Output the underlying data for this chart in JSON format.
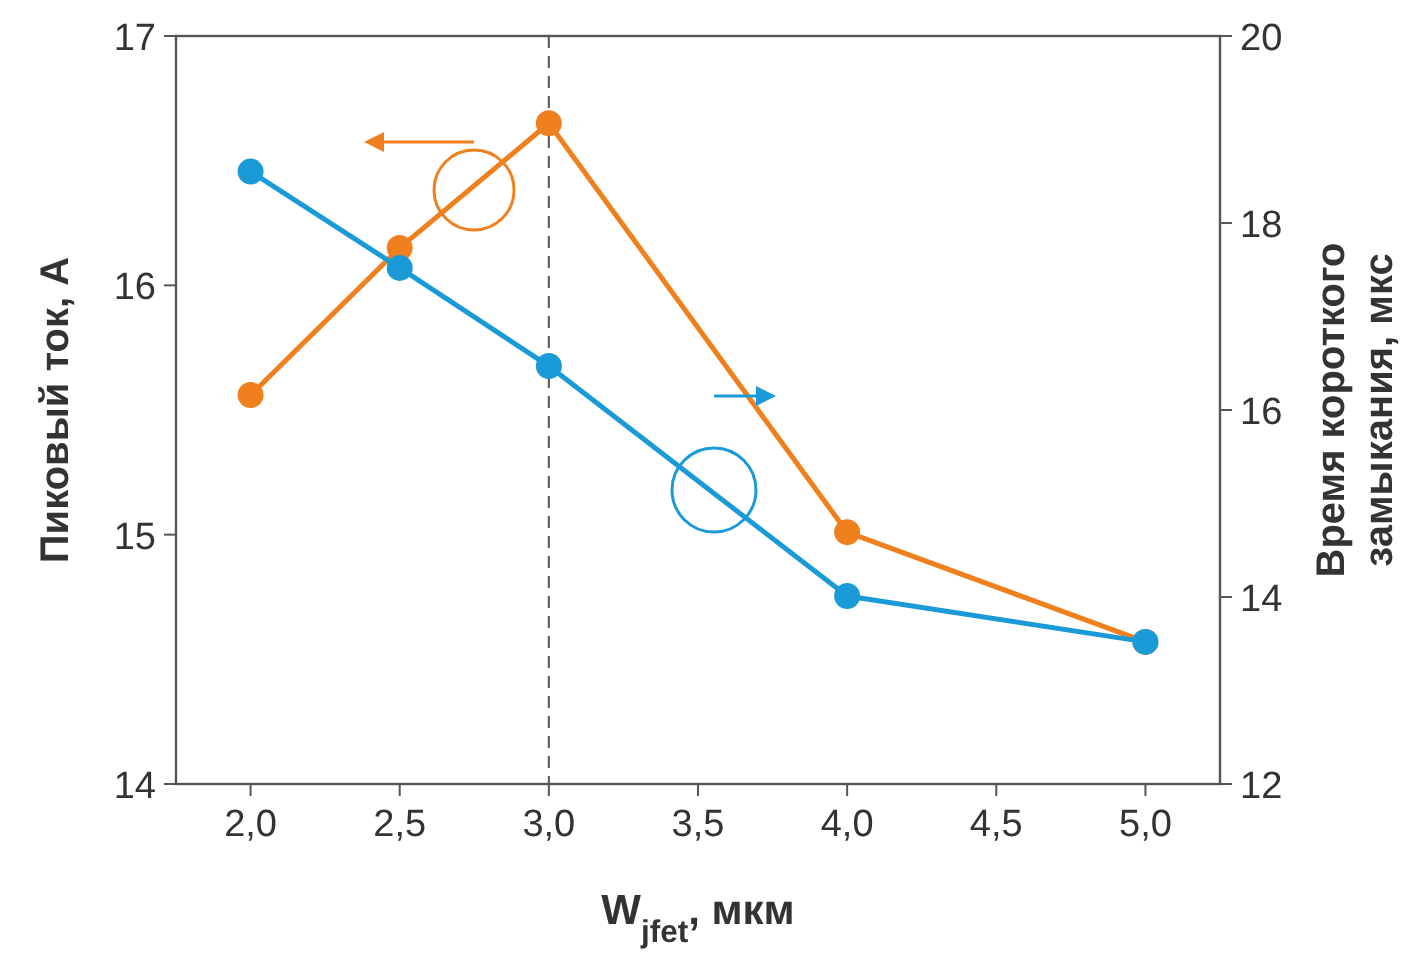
{
  "chart_data": {
    "type": "line",
    "xlabel": "W$_{jfet}$, мкм",
    "ylabel": "Пиковый ток, А",
    "y2label": "Время короткого\nзамыкания, мкс",
    "x": [
      2.0,
      2.5,
      3.0,
      4.0,
      5.0
    ],
    "series": [
      {
        "color": "#f07f1e",
        "values": [
          15.56,
          16.15,
          16.65,
          15.01,
          14.57
        ]
      },
      {
        "color": "#1a9ad6",
        "axis": "y2",
        "values": [
          18.55,
          17.52,
          16.47,
          14.01,
          13.52
        ]
      }
    ],
    "xlim": [
      1.75,
      5.25
    ],
    "xticks": [
      {
        "value": 2,
        "label": "2,0"
      },
      {
        "value": 2.5,
        "label": "2,5"
      },
      {
        "value": 3,
        "label": "3,0"
      },
      {
        "value": 3.5,
        "label": "3,5"
      },
      {
        "value": 4,
        "label": "4,0"
      },
      {
        "value": 4.5,
        "label": "4,5"
      },
      {
        "value": 5,
        "label": "5,0"
      }
    ],
    "ylim": [
      14,
      17
    ],
    "yticks": [
      14,
      15,
      16,
      17
    ],
    "y2lim": [
      12,
      20
    ],
    "y2ticks": [
      12,
      14,
      16,
      18,
      20
    ],
    "ref_lines": [
      {
        "axis": "x",
        "value": 3,
        "color": "#555555",
        "line_style": "dashed"
      }
    ],
    "marker": "circle",
    "line_style": "solid",
    "grid": false
  }
}
